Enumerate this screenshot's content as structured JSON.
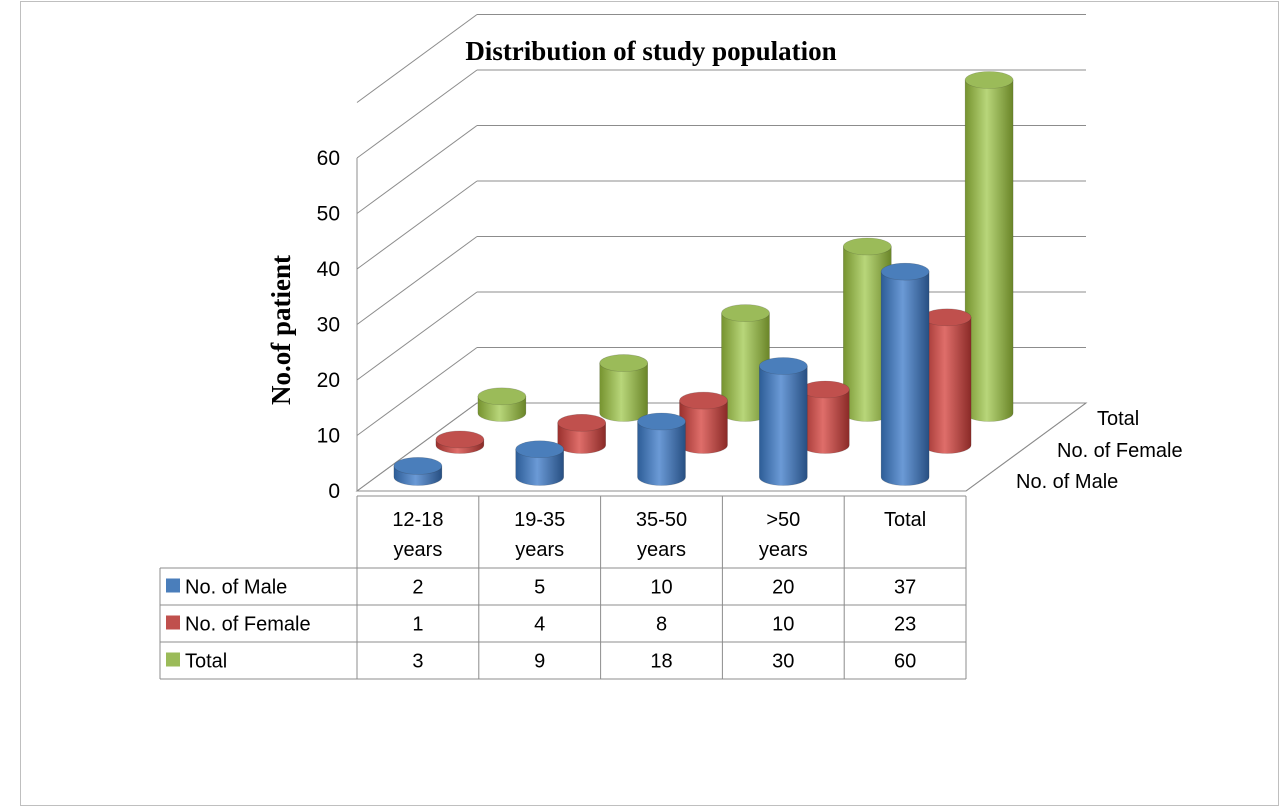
{
  "chart_data": {
    "type": "bar",
    "subtype": "3d-cylinder",
    "title": "Distribution of study population",
    "ylabel": "No.of patient",
    "xlabel": "",
    "ylim": [
      0,
      60
    ],
    "y_ticks": [
      0,
      10,
      20,
      30,
      40,
      50,
      60
    ],
    "gridlines": true,
    "legend": "data-table",
    "categories": [
      [
        "12-18",
        "years"
      ],
      [
        "19-35",
        "years"
      ],
      [
        "35-50",
        "years"
      ],
      [
        ">50",
        "years"
      ],
      [
        "Total"
      ]
    ],
    "series": [
      {
        "name": "No. of Male",
        "values": [
          2,
          5,
          10,
          20,
          37
        ],
        "color": "#4a7ebb"
      },
      {
        "name": "No. of  Female",
        "values": [
          1,
          4,
          8,
          10,
          23
        ],
        "color": "#c0504d"
      },
      {
        "name": "Total",
        "values": [
          3,
          9,
          18,
          30,
          60
        ],
        "color": "#9bbb59"
      }
    ]
  }
}
